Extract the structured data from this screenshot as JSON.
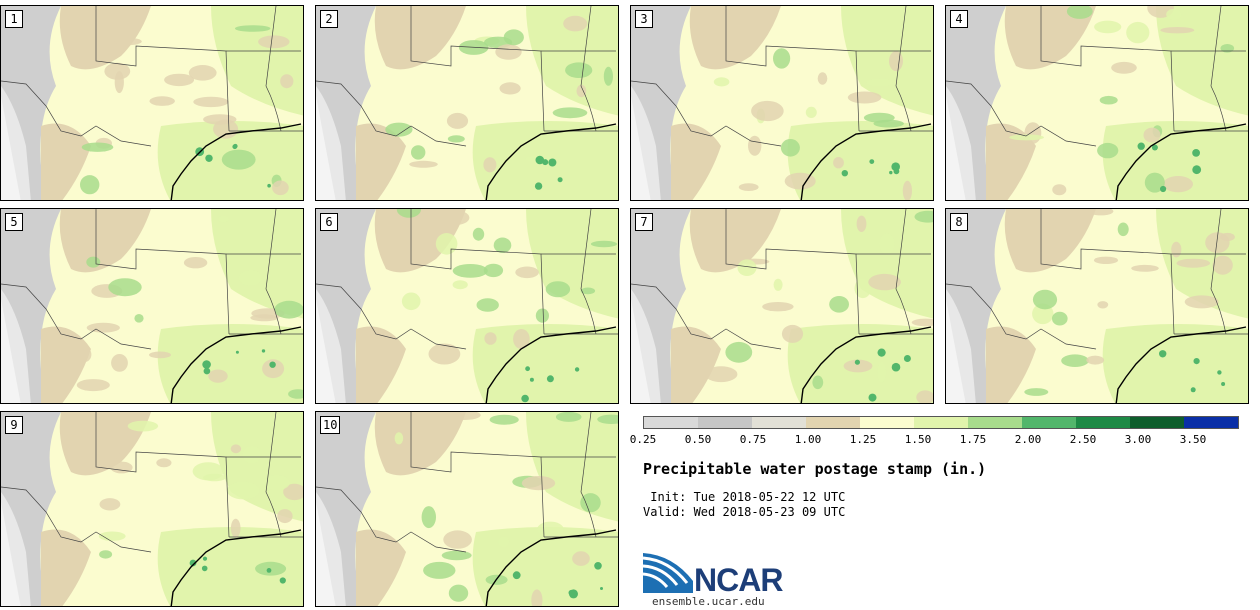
{
  "panels": [
    {
      "label": "1"
    },
    {
      "label": "2"
    },
    {
      "label": "3"
    },
    {
      "label": "4"
    },
    {
      "label": "5"
    },
    {
      "label": "6"
    },
    {
      "label": "7"
    },
    {
      "label": "8"
    },
    {
      "label": "9"
    },
    {
      "label": "10"
    }
  ],
  "colorbar": {
    "colors": [
      "#d9d9d9",
      "#c6c6c6",
      "#e2e0d6",
      "#e2d4b0",
      "#fbfccf",
      "#e1f4ac",
      "#a8dc8c",
      "#52b66b",
      "#1d8a45",
      "#0e5e2c",
      "#0a2fa7"
    ],
    "tick_labels": [
      "0.25",
      "0.50",
      "0.75",
      "1.00",
      "1.25",
      "1.50",
      "1.75",
      "2.00",
      "2.50",
      "3.00",
      "3.50"
    ]
  },
  "title": "Precipitable water postage stamp (in.)",
  "init_text": " Init: Tue 2018-05-22 12 UTC",
  "valid_text": "Valid: Wed 2018-05-23 09 UTC",
  "logo_text": "NCAR",
  "site_url": "ensemble.ucar.edu"
}
